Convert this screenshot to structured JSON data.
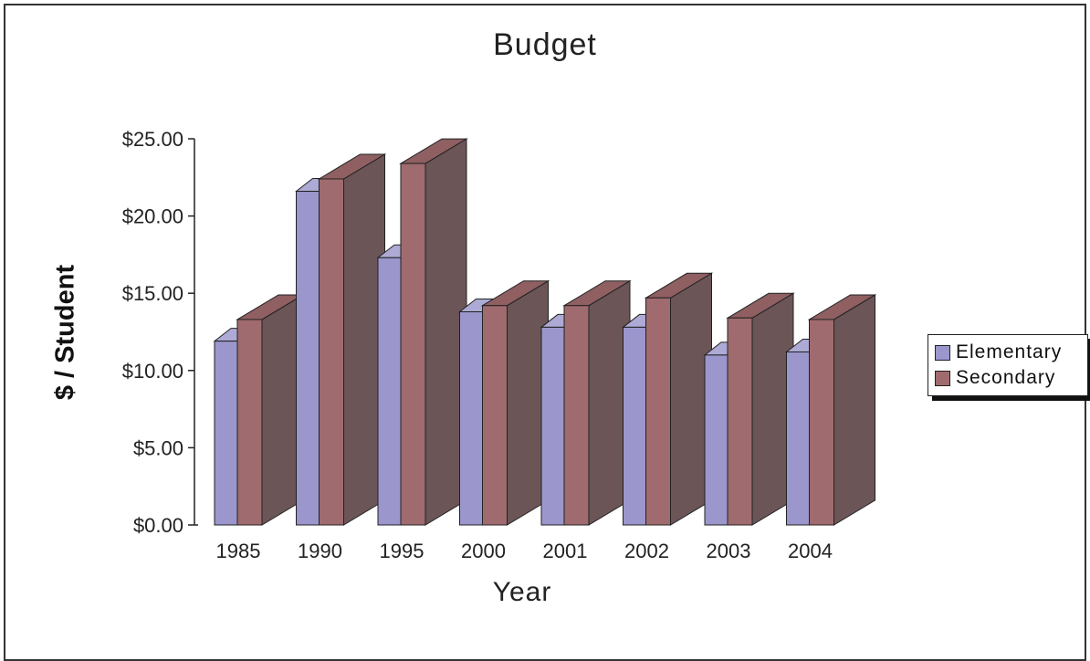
{
  "chart_data": {
    "type": "bar",
    "title": "Budget",
    "xlabel": "Year",
    "ylabel": "$ / Student",
    "categories": [
      "1985",
      "1990",
      "1995",
      "2000",
      "2001",
      "2002",
      "2003",
      "2004"
    ],
    "series": [
      {
        "name": "Elementary",
        "values": [
          11.9,
          21.6,
          17.3,
          13.8,
          12.8,
          12.8,
          11.0,
          11.2
        ],
        "color": "#9b96cc"
      },
      {
        "name": "Secondary",
        "values": [
          13.3,
          22.4,
          23.4,
          14.2,
          14.2,
          14.7,
          13.4,
          13.3
        ],
        "color": "#a06b6e"
      }
    ],
    "ylim": [
      0,
      25
    ],
    "yticks": [
      "$0.00",
      "$5.00",
      "$10.00",
      "$15.00",
      "$20.00",
      "$25.00"
    ],
    "ytick_values": [
      0,
      5,
      10,
      15,
      20,
      25
    ],
    "legend_position": "right",
    "grid": false,
    "style": "3d-column",
    "side_color_secondary": "#6b5557",
    "side_color_elementary": "#7d7aa8"
  }
}
